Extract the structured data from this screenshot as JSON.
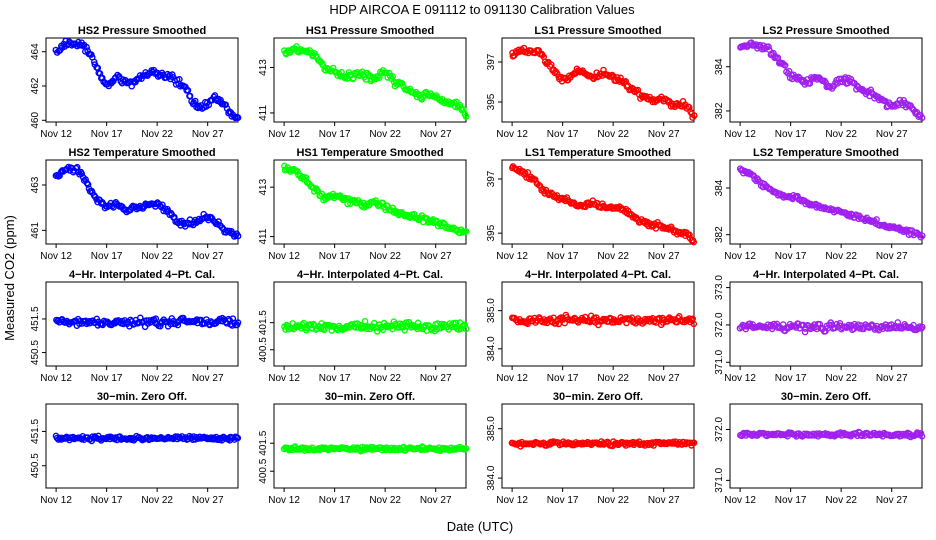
{
  "figure": {
    "title": "HDP   AIRCOA E   091112 to 091130   Calibration Values",
    "xlabel": "Date (UTC)",
    "ylabel": "Measured CO2 (ppm)"
  },
  "colors": {
    "HS2": "#0000ff",
    "HS1": "#00ff00",
    "LS1": "#ff0000",
    "LS2": "#a020f0"
  },
  "chart_data": {
    "type": "scatter",
    "xlim": [
      11,
      30
    ],
    "x_ticks": [
      12,
      17,
      22,
      27
    ],
    "x_tick_labels": [
      "Nov 12",
      "Nov 17",
      "Nov 22",
      "Nov 27"
    ],
    "data_start_day": 12.0,
    "data_end_day": 30.0,
    "panels": [
      {
        "title": "HS2 Pressure Smoothed",
        "series": "HS2",
        "ylim": [
          459.9,
          464.8
        ],
        "y_ticks": [
          460,
          462,
          464
        ],
        "y_tick_labels": [
          "460",
          "462",
          "464"
        ],
        "trend_days": [
          12,
          13,
          14.5,
          15.5,
          16.5,
          17.2,
          18,
          19.5,
          20.5,
          21.3,
          22,
          23,
          24,
          25,
          25.5,
          26,
          27,
          27.6,
          28.3,
          29,
          29.5,
          30
        ],
        "trend_values": [
          464.0,
          464.4,
          464.5,
          463.8,
          462.4,
          462.0,
          462.6,
          462.1,
          462.6,
          462.8,
          462.7,
          462.5,
          462.2,
          461.8,
          461.0,
          460.8,
          460.9,
          461.3,
          461.2,
          460.6,
          460.3,
          460.1
        ],
        "noise": 0.2
      },
      {
        "title": "HS1 Pressure Smoothed",
        "series": "HS1",
        "ylim": [
          410.6,
          414.3
        ],
        "y_ticks": [
          411,
          413
        ],
        "y_tick_labels": [
          "411",
          "413"
        ],
        "trend_days": [
          12,
          13.5,
          15,
          16,
          17,
          18,
          19.5,
          21,
          22,
          23,
          24,
          25.5,
          26.5,
          27.5,
          28.5,
          29.5,
          30
        ],
        "trend_values": [
          413.7,
          413.8,
          413.6,
          413.0,
          412.8,
          412.6,
          412.7,
          412.5,
          412.8,
          412.4,
          412.1,
          411.7,
          411.8,
          411.6,
          411.4,
          411.3,
          410.9
        ],
        "noise": 0.15
      },
      {
        "title": "LS1 Pressure Smoothed",
        "series": "LS1",
        "ylim": [
          394.0,
          398.2
        ],
        "y_ticks": [
          395,
          397
        ],
        "y_tick_labels": [
          "395",
          "397"
        ],
        "trend_days": [
          12,
          13,
          14.5,
          15.5,
          16.5,
          17.5,
          18.5,
          20,
          21,
          22.3,
          23,
          24,
          25,
          26,
          27,
          28,
          29,
          29.5,
          30
        ],
        "trend_values": [
          397.4,
          397.6,
          397.5,
          397.0,
          396.4,
          396.1,
          396.6,
          396.2,
          396.5,
          396.2,
          396.0,
          395.6,
          395.3,
          395.0,
          395.2,
          394.8,
          394.9,
          394.6,
          394.3
        ],
        "noise": 0.18
      },
      {
        "title": "LS2 Pressure Smoothed",
        "series": "LS2",
        "ylim": [
          381.5,
          385.3
        ],
        "y_ticks": [
          382,
          384
        ],
        "y_tick_labels": [
          "382",
          "384"
        ],
        "trend_days": [
          12,
          13,
          14.5,
          16,
          17,
          18.5,
          19.5,
          21,
          22,
          23,
          24,
          25,
          26.3,
          27,
          28,
          29,
          29.5,
          30
        ],
        "trend_values": [
          384.9,
          385.0,
          384.9,
          384.2,
          383.6,
          383.3,
          383.5,
          383.1,
          383.4,
          383.3,
          383.0,
          382.8,
          382.4,
          382.2,
          382.4,
          382.1,
          381.9,
          381.6
        ],
        "noise": 0.14
      },
      {
        "title": "HS2 Temperature Smoothed",
        "series": "HS2",
        "ylim": [
          460.4,
          464.1
        ],
        "y_ticks": [
          461,
          463
        ],
        "y_tick_labels": [
          "461",
          "463"
        ],
        "trend_days": [
          12,
          13,
          14,
          15,
          16,
          17,
          18,
          19,
          20,
          21,
          22,
          23,
          24,
          25,
          26,
          27,
          28,
          29,
          30
        ],
        "trend_values": [
          463.4,
          463.7,
          463.7,
          463.1,
          462.4,
          462.1,
          462.1,
          461.9,
          462.0,
          462.1,
          462.2,
          461.9,
          461.4,
          461.3,
          461.4,
          461.6,
          461.3,
          460.9,
          460.8
        ],
        "noise": 0.13
      },
      {
        "title": "HS1 Temperature Smoothed",
        "series": "HS1",
        "ylim": [
          410.7,
          414.1
        ],
        "y_ticks": [
          411,
          413
        ],
        "y_tick_labels": [
          "411",
          "413"
        ],
        "trend_days": [
          12,
          13,
          14,
          15,
          16,
          17,
          18,
          19,
          20,
          21,
          22,
          23,
          24,
          25,
          26,
          27,
          28,
          29,
          30
        ],
        "trend_values": [
          413.8,
          413.7,
          413.4,
          412.9,
          412.6,
          412.7,
          412.5,
          412.4,
          412.3,
          412.4,
          412.2,
          412.0,
          411.9,
          411.8,
          411.7,
          411.6,
          411.4,
          411.3,
          411.1
        ],
        "noise": 0.13
      },
      {
        "title": "LS1 Temperature Smoothed",
        "series": "LS1",
        "ylim": [
          394.6,
          397.7
        ],
        "y_ticks": [
          395,
          397
        ],
        "y_tick_labels": [
          "395",
          "397"
        ],
        "trend_days": [
          12,
          13,
          14,
          15,
          16,
          17,
          18,
          19,
          20,
          21,
          22,
          23,
          24,
          25,
          26,
          27,
          28,
          29,
          30
        ],
        "trend_values": [
          397.4,
          397.3,
          397.0,
          396.6,
          396.4,
          396.3,
          396.1,
          396.0,
          396.1,
          396.0,
          395.9,
          395.9,
          395.6,
          395.4,
          395.3,
          395.2,
          395.1,
          395.0,
          394.8
        ],
        "noise": 0.1
      },
      {
        "title": "LS2 Temperature Smoothed",
        "series": "LS2",
        "ylim": [
          381.6,
          385.2
        ],
        "y_ticks": [
          382,
          384
        ],
        "y_tick_labels": [
          "382",
          "384"
        ],
        "trend_days": [
          12,
          13,
          14,
          15,
          16,
          17,
          18,
          19,
          20,
          21,
          22,
          23,
          24,
          25,
          26,
          27,
          28,
          29,
          30
        ],
        "trend_values": [
          384.8,
          384.6,
          384.2,
          383.9,
          383.7,
          383.6,
          383.5,
          383.3,
          383.2,
          383.1,
          383.0,
          382.8,
          382.7,
          382.6,
          382.4,
          382.3,
          382.2,
          382.1,
          381.9
        ],
        "noise": 0.1
      },
      {
        "title": "4−Hr. Interpolated 4−Pt. Cal.",
        "series": "HS2",
        "ylim": [
          450.1,
          452.6
        ],
        "y_ticks": [
          450.5,
          451.5
        ],
        "y_tick_labels": [
          "450.5",
          "451.5"
        ],
        "trend_days": [
          12,
          30
        ],
        "trend_values": [
          451.4,
          451.4
        ],
        "noise": 0.12
      },
      {
        "title": "4−Hr. Interpolated 4−Pt. Cal.",
        "series": "HS1",
        "ylim": [
          399.9,
          403.0
        ],
        "y_ticks": [
          400.5,
          401.5
        ],
        "y_tick_labels": [
          "400.5",
          "401.5"
        ],
        "trend_days": [
          12,
          30
        ],
        "trend_values": [
          401.35,
          401.35
        ],
        "noise": 0.15
      },
      {
        "title": "4−Hr. Interpolated 4−Pt. Cal.",
        "series": "LS1",
        "ylim": [
          383.55,
          385.75
        ],
        "y_ticks": [
          384.0,
          385.0
        ],
        "y_tick_labels": [
          "384.0",
          "385.0"
        ],
        "trend_days": [
          12,
          30
        ],
        "trend_values": [
          384.75,
          384.75
        ],
        "noise": 0.1
      },
      {
        "title": "4−Hr. Interpolated 4−Pt. Cal.",
        "series": "LS2",
        "ylim": [
          370.9,
          373.15
        ],
        "y_ticks": [
          371.0,
          372.0,
          373.0
        ],
        "y_tick_labels": [
          "371.0",
          "372.0",
          "373.0"
        ],
        "trend_days": [
          12,
          30
        ],
        "trend_values": [
          371.95,
          371.95
        ],
        "noise": 0.1
      },
      {
        "title": "30−min. Zero Off.",
        "series": "HS2",
        "ylim": [
          449.85,
          452.3
        ],
        "y_ticks": [
          450.5,
          451.5
        ],
        "y_tick_labels": [
          "450.5",
          "451.5"
        ],
        "trend_days": [
          12,
          30
        ],
        "trend_values": [
          451.3,
          451.3
        ],
        "noise": 0.06
      },
      {
        "title": "30−min. Zero Off.",
        "series": "HS1",
        "ylim": [
          399.9,
          402.9
        ],
        "y_ticks": [
          400.5,
          401.5
        ],
        "y_tick_labels": [
          "400.5",
          "401.5"
        ],
        "trend_days": [
          12,
          30
        ],
        "trend_values": [
          401.3,
          401.3
        ],
        "noise": 0.07
      },
      {
        "title": "30−min. Zero Off.",
        "series": "LS1",
        "ylim": [
          383.8,
          385.5
        ],
        "y_ticks": [
          384.0,
          385.0
        ],
        "y_tick_labels": [
          "384.0",
          "385.0"
        ],
        "trend_days": [
          12,
          30
        ],
        "trend_values": [
          384.7,
          384.7
        ],
        "noise": 0.04
      },
      {
        "title": "30−min. Zero Off.",
        "series": "LS2",
        "ylim": [
          370.85,
          372.5
        ],
        "y_ticks": [
          371.0,
          372.0
        ],
        "y_tick_labels": [
          "371.0",
          "372.0"
        ],
        "trend_days": [
          12,
          30
        ],
        "trend_values": [
          371.9,
          371.9
        ],
        "noise": 0.04
      }
    ]
  }
}
